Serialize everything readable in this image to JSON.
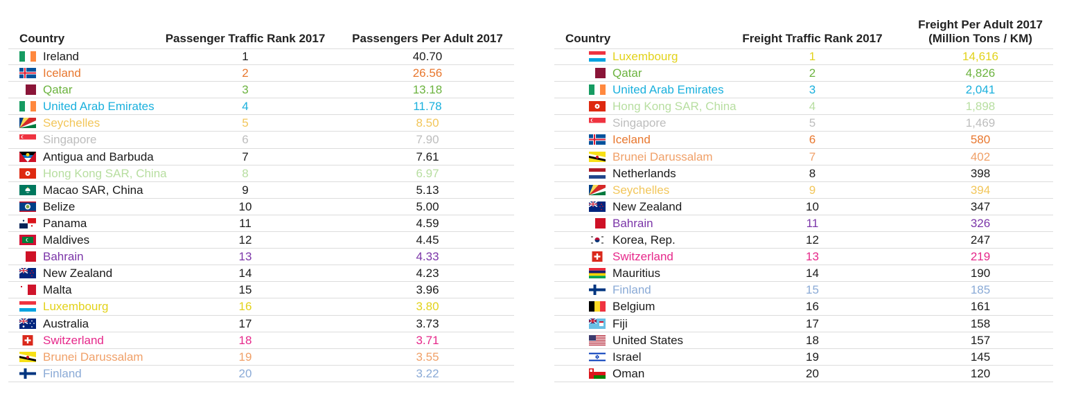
{
  "chart_data": [
    {
      "type": "table",
      "columns": [
        "Country",
        "Passenger Traffic Rank 2017",
        "Passengers Per Adult 2017"
      ],
      "rows": [
        {
          "country": "Ireland",
          "rank": "1",
          "value": "40.70",
          "color": "#1a1a1a",
          "flag": "ireland-flag-icon"
        },
        {
          "country": "Iceland",
          "rank": "2",
          "value": "26.56",
          "color": "#e8772e",
          "flag": "iceland-flag-icon"
        },
        {
          "country": "Qatar",
          "rank": "3",
          "value": "13.18",
          "color": "#6cb33f",
          "flag": "qatar-flag-icon"
        },
        {
          "country": "United Arab Emirates",
          "rank": "4",
          "value": "11.78",
          "color": "#1ab0dd",
          "flag": "ireland-flag-icon"
        },
        {
          "country": "Seychelles",
          "rank": "5",
          "value": "8.50",
          "color": "#f2c65a",
          "flag": "seychelles-flag-icon"
        },
        {
          "country": "Singapore",
          "rank": "6",
          "value": "7.90",
          "color": "#bdbdbd",
          "flag": "singapore-flag-icon"
        },
        {
          "country": "Antigua and Barbuda",
          "rank": "7",
          "value": "7.61",
          "color": "#1a1a1a",
          "flag": "antigua-flag-icon"
        },
        {
          "country": "Hong Kong SAR, China",
          "rank": "8",
          "value": "6.97",
          "color": "#b7dea0",
          "flag": "hongkong-flag-icon"
        },
        {
          "country": "Macao SAR, China",
          "rank": "9",
          "value": "5.13",
          "color": "#1a1a1a",
          "flag": "macao-flag-icon"
        },
        {
          "country": "Belize",
          "rank": "10",
          "value": "5.00",
          "color": "#1a1a1a",
          "flag": "belize-flag-icon"
        },
        {
          "country": "Panama",
          "rank": "11",
          "value": "4.59",
          "color": "#1a1a1a",
          "flag": "panama-flag-icon"
        },
        {
          "country": "Maldives",
          "rank": "12",
          "value": "4.45",
          "color": "#1a1a1a",
          "flag": "maldives-flag-icon"
        },
        {
          "country": "Bahrain",
          "rank": "13",
          "value": "4.33",
          "color": "#7b35a8",
          "flag": "bahrain-flag-icon"
        },
        {
          "country": "New Zealand",
          "rank": "14",
          "value": "4.23",
          "color": "#1a1a1a",
          "flag": "newzealand-flag-icon"
        },
        {
          "country": "Malta",
          "rank": "15",
          "value": "3.96",
          "color": "#1a1a1a",
          "flag": "malta-flag-icon"
        },
        {
          "country": "Luxembourg",
          "rank": "16",
          "value": "3.80",
          "color": "#e2d21a",
          "flag": "luxembourg-flag-icon"
        },
        {
          "country": "Australia",
          "rank": "17",
          "value": "3.73",
          "color": "#1a1a1a",
          "flag": "australia-flag-icon"
        },
        {
          "country": "Switzerland",
          "rank": "18",
          "value": "3.71",
          "color": "#e6288a",
          "flag": "switzerland-flag-icon"
        },
        {
          "country": "Brunei Darussalam",
          "rank": "19",
          "value": "3.55",
          "color": "#f0a068",
          "flag": "brunei-flag-icon"
        },
        {
          "country": "Finland",
          "rank": "20",
          "value": "3.22",
          "color": "#8aaad6",
          "flag": "finland-flag-icon"
        }
      ]
    },
    {
      "type": "table",
      "columns": [
        "Country",
        "Freight Traffic Rank 2017",
        "Freight Per Adult 2017",
        "(Million Tons / KM)"
      ],
      "rows": [
        {
          "country": "Luxembourg",
          "rank": "1",
          "value": "14,616",
          "color": "#e2d21a",
          "flag": "luxembourg-flag-icon"
        },
        {
          "country": "Qatar",
          "rank": "2",
          "value": "4,826",
          "color": "#6cb33f",
          "flag": "qatar-flag-icon"
        },
        {
          "country": "United Arab Emirates",
          "rank": "3",
          "value": "2,041",
          "color": "#1ab0dd",
          "flag": "ireland-flag-icon"
        },
        {
          "country": "Hong Kong SAR, China",
          "rank": "4",
          "value": "1,898",
          "color": "#b7dea0",
          "flag": "hongkong-flag-icon"
        },
        {
          "country": "Singapore",
          "rank": "5",
          "value": "1,469",
          "color": "#bdbdbd",
          "flag": "singapore-flag-icon"
        },
        {
          "country": "Iceland",
          "rank": "6",
          "value": "580",
          "color": "#e8772e",
          "flag": "iceland-flag-icon"
        },
        {
          "country": "Brunei Darussalam",
          "rank": "7",
          "value": "402",
          "color": "#f0a068",
          "flag": "brunei-flag-icon"
        },
        {
          "country": "Netherlands",
          "rank": "8",
          "value": "398",
          "color": "#1a1a1a",
          "flag": "netherlands-flag-icon"
        },
        {
          "country": "Seychelles",
          "rank": "9",
          "value": "394",
          "color": "#f2c65a",
          "flag": "seychelles-flag-icon"
        },
        {
          "country": "New Zealand",
          "rank": "10",
          "value": "347",
          "color": "#1a1a1a",
          "flag": "newzealand-flag-icon"
        },
        {
          "country": "Bahrain",
          "rank": "11",
          "value": "326",
          "color": "#7b35a8",
          "flag": "bahrain-flag-icon"
        },
        {
          "country": "Korea, Rep.",
          "rank": "12",
          "value": "247",
          "color": "#1a1a1a",
          "flag": "korea-flag-icon"
        },
        {
          "country": "Switzerland",
          "rank": "13",
          "value": "219",
          "color": "#e6288a",
          "flag": "switzerland-flag-icon"
        },
        {
          "country": "Mauritius",
          "rank": "14",
          "value": "190",
          "color": "#1a1a1a",
          "flag": "mauritius-flag-icon"
        },
        {
          "country": "Finland",
          "rank": "15",
          "value": "185",
          "color": "#8aaad6",
          "flag": "finland-flag-icon"
        },
        {
          "country": "Belgium",
          "rank": "16",
          "value": "161",
          "color": "#1a1a1a",
          "flag": "belgium-flag-icon"
        },
        {
          "country": "Fiji",
          "rank": "17",
          "value": "158",
          "color": "#1a1a1a",
          "flag": "fiji-flag-icon"
        },
        {
          "country": "United States",
          "rank": "18",
          "value": "157",
          "color": "#1a1a1a",
          "flag": "usa-flag-icon"
        },
        {
          "country": "Israel",
          "rank": "19",
          "value": "145",
          "color": "#1a1a1a",
          "flag": "israel-flag-icon"
        },
        {
          "country": "Oman",
          "rank": "20",
          "value": "120",
          "color": "#1a1a1a",
          "flag": "oman-flag-icon"
        }
      ]
    }
  ]
}
